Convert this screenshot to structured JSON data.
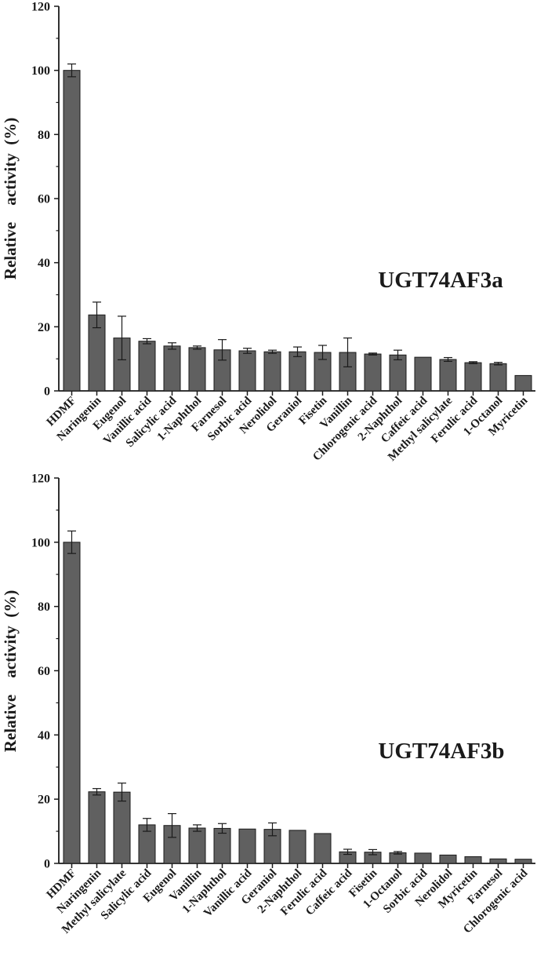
{
  "colors": {
    "bar_fill": "#606060",
    "bar_stroke": "#1a1a1a",
    "axis": "#1a1a1a"
  },
  "chart_data": [
    {
      "type": "bar",
      "panel_label": "UGT74AF3a",
      "ylabel": "Relative    activity  (%)",
      "ylim": [
        0,
        120
      ],
      "yticks": [
        "0",
        "20",
        "40",
        "60",
        "80",
        "100",
        "120"
      ],
      "grid": false,
      "categories": [
        "HDMF",
        "Naringenin",
        "Eugenol",
        "Vanillic acid",
        "Salicylic acid",
        "1-Naphthol",
        "Farnesol",
        "Sorbic acid",
        "Nerolidol",
        "Geraniol",
        "Fisetin",
        "Vanillin",
        "Chlorogenic acid",
        "2-Naphthol",
        "Caffeic acid",
        "Methyl salicylate",
        "Ferulic acid",
        "1-Octanol",
        "Myricetin"
      ],
      "values": [
        100,
        23.7,
        16.5,
        15.5,
        14,
        13.5,
        12.8,
        12.5,
        12.2,
        12.2,
        12,
        12,
        11.5,
        11.2,
        10.5,
        9.8,
        8.8,
        8.5,
        4.8
      ],
      "errors": [
        2,
        4,
        6.8,
        0.8,
        1,
        0.5,
        3.2,
        0.8,
        0.5,
        1.5,
        2.2,
        4.5,
        0.3,
        1.5,
        0,
        0.6,
        0.3,
        0.4,
        0
      ]
    },
    {
      "type": "bar",
      "panel_label": "UGT74AF3b",
      "ylabel": "Relative    activity  (%)",
      "ylim": [
        0,
        120
      ],
      "yticks": [
        "0",
        "20",
        "40",
        "60",
        "80",
        "100",
        "120"
      ],
      "grid": false,
      "categories": [
        "HDMF",
        "Naringenin",
        "Methyl salicylate",
        "Salicylic acid",
        "Eugenol",
        "Vanillin",
        "1-Naphthol",
        "Vanillic acid",
        "Geraniol",
        "2-Naphthol",
        "Ferulic acid",
        "Caffeic acid",
        "Fisetin",
        "1-Octanol",
        "Sorbic acid",
        "Nerolidol",
        "Myricetin",
        "Farnesol",
        "Chlorogenic acid"
      ],
      "values": [
        100,
        22.3,
        22.2,
        12,
        11.8,
        11,
        10.9,
        10.7,
        10.6,
        10.3,
        9.3,
        3.6,
        3.5,
        3.3,
        3.2,
        2.6,
        2.1,
        1.4,
        1.3
      ],
      "errors": [
        3.5,
        1,
        2.8,
        2,
        3.7,
        1,
        1.5,
        0,
        2,
        0,
        0,
        0.8,
        0.8,
        0.4,
        0,
        0,
        0,
        0,
        0
      ]
    }
  ]
}
